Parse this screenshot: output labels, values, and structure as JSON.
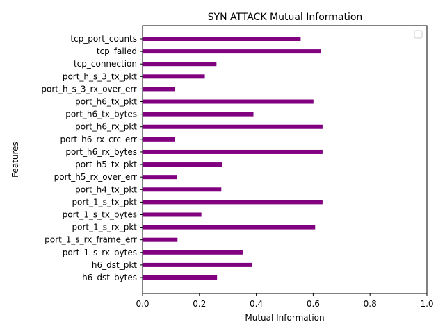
{
  "chart_data": {
    "type": "bar",
    "orientation": "horizontal",
    "title": "SYN ATTACK Mutual Information",
    "xlabel": "Mutual Information",
    "ylabel": "Features",
    "xlim": [
      0,
      1.0
    ],
    "xticks": [
      "0.0",
      "0.2",
      "0.4",
      "0.6",
      "0.8",
      "1.0"
    ],
    "bar_color": "#800080",
    "legend": "top-right",
    "grid": false,
    "categories": [
      "h6_dst_bytes",
      "h6_dst_pkt",
      "port_1_s_rx_bytes",
      "port_1_s_rx_frame_err",
      "port_1_s_rx_pkt",
      "port_1_s_tx_bytes",
      "port_1_s_tx_pkt",
      "port_h4_tx_pkt",
      "port_h5_rx_over_err",
      "port_h5_tx_pkt",
      "port_h6_rx_bytes",
      "port_h6_rx_crc_err",
      "port_h6_rx_pkt",
      "port_h6_tx_bytes",
      "port_h6_tx_pkt",
      "port_h_s_3_rx_over_err",
      "port_h_s_3_tx_pkt",
      "tcp_connection",
      "tcp_failed",
      "tcp_port_counts"
    ],
    "values": [
      0.262,
      0.385,
      0.352,
      0.123,
      0.607,
      0.207,
      0.633,
      0.277,
      0.12,
      0.281,
      0.633,
      0.113,
      0.633,
      0.39,
      0.601,
      0.113,
      0.219,
      0.26,
      0.626,
      0.556
    ]
  }
}
